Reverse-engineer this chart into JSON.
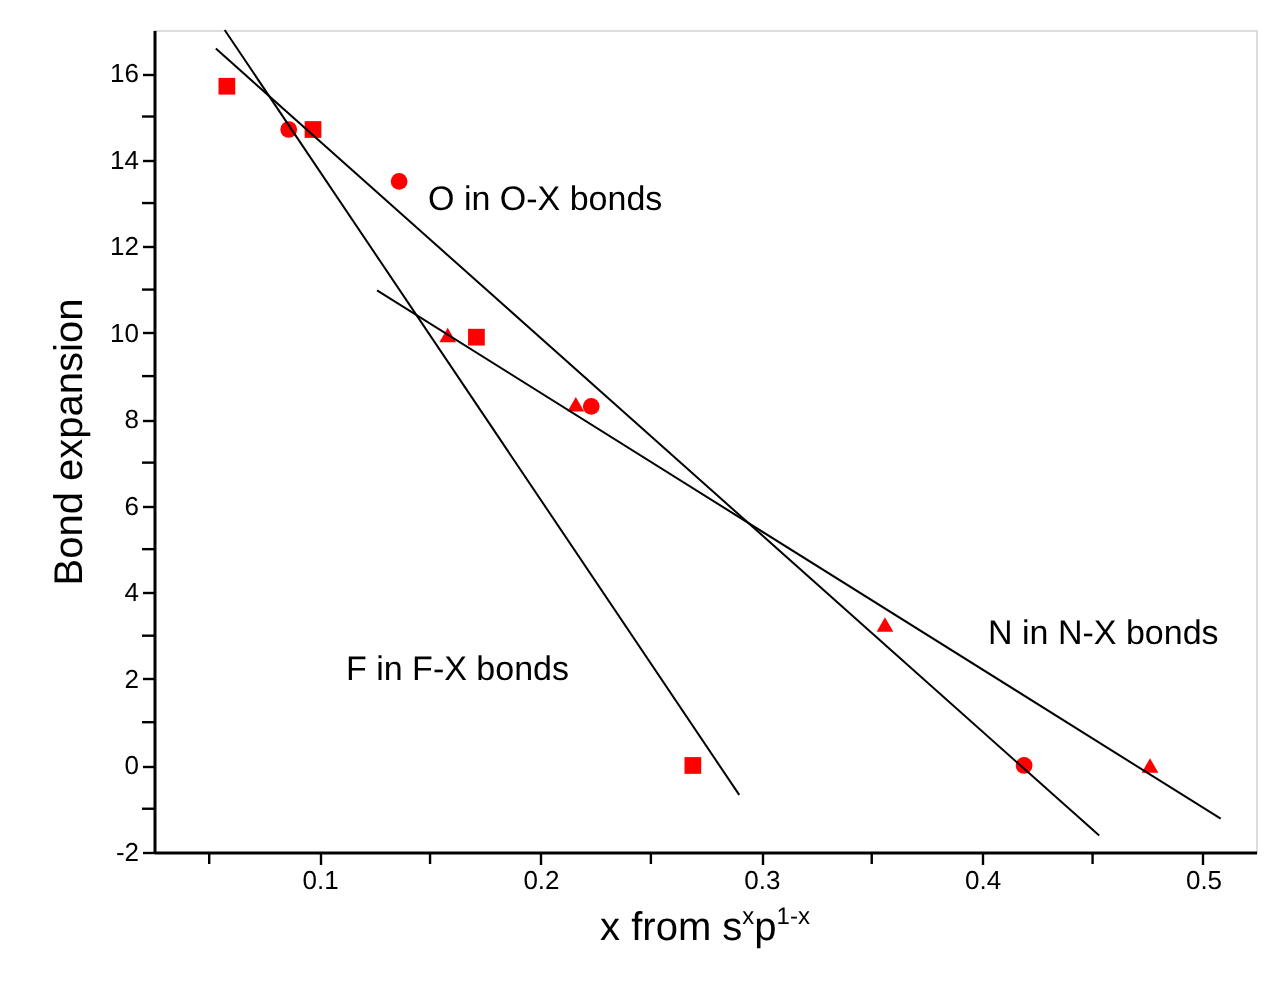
{
  "chart_data": {
    "type": "scatter",
    "xlabel": "x from s$^{x}$p$^{1-x}$",
    "ylabel": "Bond expansion",
    "xlim": [
      0.025,
      0.524
    ],
    "ylim": [
      -2,
      17
    ],
    "xticks": [
      {
        "value": 0.05,
        "label": null
      },
      0.1,
      {
        "value": 0.15,
        "label": null
      },
      0.2,
      {
        "value": 0.25,
        "label": null
      },
      0.3,
      {
        "value": 0.35,
        "label": null
      },
      0.4,
      {
        "value": 0.45,
        "label": null
      },
      0.5
    ],
    "yticks": [
      -2,
      {
        "value": -1,
        "label": null
      },
      0,
      {
        "value": 1,
        "label": null
      },
      2,
      {
        "value": 3,
        "label": null
      },
      4,
      {
        "value": 5,
        "label": null
      },
      6,
      {
        "value": 7,
        "label": null
      },
      8,
      {
        "value": 9,
        "label": null
      },
      10,
      {
        "value": 11,
        "label": null
      },
      12,
      {
        "value": 13,
        "label": null
      },
      14,
      {
        "value": 15,
        "label": null
      },
      16
    ],
    "grid": false,
    "series": [
      {
        "marker": "square",
        "color": "#ff0000",
        "x": [
          0.058,
          0.097,
          0.171,
          0.269
        ],
        "values": [
          15.7,
          14.7,
          9.9,
          0.0
        ]
      },
      {
        "marker": "circle",
        "color": "#ff0000",
        "x": [
          0.086,
          0.136,
          0.223,
          0.419
        ],
        "values": [
          14.7,
          13.5,
          8.3,
          0.0
        ]
      },
      {
        "marker": "triangle",
        "color": "#ff0000",
        "x": [
          0.158,
          0.216,
          0.356,
          0.476
        ],
        "values": [
          9.95,
          8.35,
          3.26,
          0.0
        ]
      },
      {
        "type": "line",
        "marker": "none",
        "line_style": "solid",
        "color": "#000000",
        "x": [
          0.057,
          0.29
        ],
        "values": [
          17.0,
          -0.68
        ]
      },
      {
        "type": "line",
        "marker": "none",
        "line_style": "solid",
        "color": "#000000",
        "x": [
          0.053,
          0.453
        ],
        "values": [
          16.57,
          -1.62
        ]
      },
      {
        "type": "line",
        "marker": "none",
        "line_style": "solid",
        "color": "#000000",
        "x": [
          0.126,
          0.508
        ],
        "values": [
          10.98,
          -1.23
        ]
      }
    ],
    "annotations": [
      "O in O-X bonds",
      "F in F-X bonds",
      "N in N-X bonds"
    ]
  }
}
